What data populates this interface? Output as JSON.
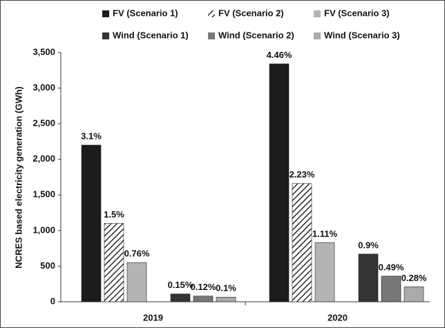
{
  "chart_data": {
    "type": "bar",
    "y_label": "NCRES based electricity generation (GWh)",
    "categories": [
      "2019",
      "2020"
    ],
    "series": [
      {
        "name": "FV (Scenario 1)",
        "color": "#1c1c1c",
        "values": [
          2200,
          3340
        ],
        "percent_labels": [
          "3.1%",
          "4.46%"
        ]
      },
      {
        "name": "FV (Scenario 2)",
        "color": "#2a2a2a",
        "pattern": "hatch",
        "values": [
          1100,
          1660
        ],
        "percent_labels": [
          "1.5%",
          "2.23%"
        ]
      },
      {
        "name": "FV (Scenario 3)",
        "color": "#b4b4b4",
        "values": [
          550,
          830
        ],
        "percent_labels": [
          "0.76%",
          "1.11%"
        ]
      },
      {
        "name": "Wind (Scenario 1)",
        "color": "#333333",
        "values": [
          110,
          670
        ],
        "percent_labels": [
          "0.15%",
          "0.9%"
        ]
      },
      {
        "name": "Wind (Scenario 2)",
        "color": "#777777",
        "values": [
          80,
          360
        ],
        "percent_labels": [
          "0.12%",
          "0.49%"
        ]
      },
      {
        "name": "Wind (Scenario 3)",
        "color": "#aaaaaa",
        "values": [
          65,
          210
        ],
        "percent_labels": [
          "0.1%",
          "0.28%"
        ]
      }
    ],
    "ylim": [
      0,
      3500
    ],
    "yticks": [
      0,
      500,
      {
        "value": 1000,
        "label": "1,000"
      },
      {
        "value": 1500,
        "label": "1,500"
      },
      {
        "value": 2000,
        "label": "2,000"
      },
      {
        "value": 2500,
        "label": "2,500"
      },
      {
        "value": 3000,
        "label": "3,000"
      },
      {
        "value": 3500,
        "label": "3,500"
      }
    ],
    "legend": "top"
  }
}
